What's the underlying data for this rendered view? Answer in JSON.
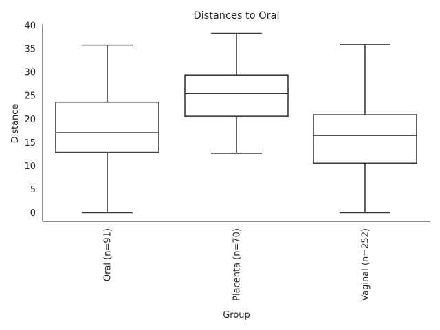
{
  "chart_data": {
    "type": "box",
    "title": "Distances to Oral",
    "xlabel": "Group",
    "ylabel": "Distance",
    "ylim": [
      -2,
      40
    ],
    "yticks": [
      "0",
      "5",
      "10",
      "15",
      "20",
      "25",
      "30",
      "35",
      "40"
    ],
    "categories": [
      "Oral (n=91)",
      "Placenta (n=70)",
      "Vaginal (n=252)"
    ],
    "boxes": [
      {
        "whisker_low": 0,
        "q1": 12.9,
        "median": 17.1,
        "q3": 23.6,
        "whisker_high": 35.8
      },
      {
        "whisker_low": 12.7,
        "q1": 20.6,
        "median": 25.5,
        "q3": 29.4,
        "whisker_high": 38.3
      },
      {
        "whisker_low": 0,
        "q1": 10.6,
        "median": 16.5,
        "q3": 20.9,
        "whisker_high": 35.9
      }
    ],
    "grid": false,
    "colors": {
      "box_edge": "#3a3a3a",
      "box_fill": "#ffffff",
      "axis": "#262626"
    }
  }
}
